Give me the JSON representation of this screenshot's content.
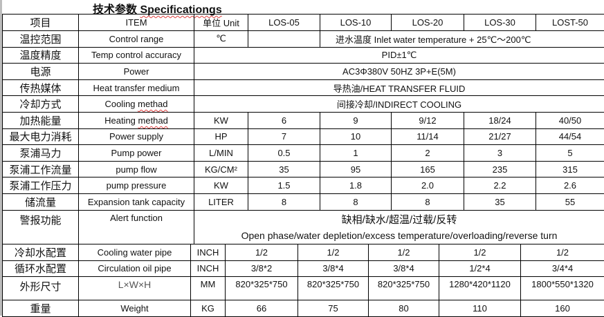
{
  "title": {
    "zh": "技术参数",
    "en": "Specificationgs"
  },
  "header": {
    "zh": "项目",
    "item": "ITEM",
    "unit": "单位 Unit",
    "models": [
      "LOS-05",
      "LOS-10",
      "LOS-20",
      "LOS-30",
      "LOST-50"
    ]
  },
  "rows_merged": [
    {
      "zh": "温控范围",
      "en": "Control range",
      "unit": "℃",
      "value": "进水温度 Inlet water temperature + 25℃～200℃"
    },
    {
      "zh": "温度精度",
      "en": "Temp control accuracy",
      "value": "PID±1℃"
    },
    {
      "zh": "电源",
      "en": "Power",
      "value": "AC3Φ380V 50HZ 3P+E(5M)"
    },
    {
      "zh": "传热媒体",
      "en": "Heat transfer medium",
      "value": "导热油/HEAT TRANSFER FLUID"
    },
    {
      "zh": "冷却方式",
      "en": "Cooling methad",
      "value": "间接冷却/INDIRECT COOLING"
    }
  ],
  "rows": [
    {
      "zh": "加热能量",
      "en": "Heating methad",
      "unit": "KW",
      "values": [
        "6",
        "9",
        "9/12",
        "18/24",
        "40/50"
      ]
    },
    {
      "zh": "最大电力消耗",
      "en": "Power supply",
      "unit": "HP",
      "values": [
        "7",
        "10",
        "11/14",
        "21/27",
        "44/54"
      ]
    },
    {
      "zh": "泵浦马力",
      "en": "Pump power",
      "unit": "L/MIN",
      "values": [
        "0.5",
        "1",
        "2",
        "3",
        "5"
      ]
    },
    {
      "zh": "泵浦工作流量",
      "en": "pump flow",
      "unit": "KG/CM²",
      "values": [
        "35",
        "95",
        "165",
        "235",
        "315"
      ]
    },
    {
      "zh": "泵浦工作压力",
      "en": "pump pressure",
      "unit": "KW",
      "values": [
        "1.5",
        "1.8",
        "2.0",
        "2.2",
        "2.6"
      ]
    },
    {
      "zh": "储流量",
      "en": "Expansion tank capacity",
      "unit": "LITER",
      "values": [
        "8",
        "8",
        "8",
        "35",
        "55"
      ]
    }
  ],
  "alert": {
    "zh": "警报功能",
    "en": "Alert function",
    "value_zh": "缺相/缺水/超温/过载/反转",
    "value_en": "Open phase/water depletion/excess temperature/overloading/reverse turn"
  },
  "rows_lower": [
    {
      "zh": "冷却水配置",
      "en": "Cooling water pipe",
      "unit": "INCH",
      "values": [
        "1/2",
        "1/2",
        "1/2",
        "1/2",
        "1/2"
      ]
    },
    {
      "zh": "循环水配置",
      "en": "Circulation oil pipe",
      "unit": "INCH",
      "values": [
        "3/8*2",
        "3/8*4",
        "3/8*4",
        "1/2*4",
        "3/4*4"
      ]
    },
    {
      "zh": "外形尺寸",
      "en": "L×W×H",
      "unit": "MM",
      "values": [
        "820*325*750",
        "820*325*750",
        "820*325*750",
        "1280*420*1120",
        "1800*550*1320"
      ]
    },
    {
      "zh": "重量",
      "en": "Weight",
      "unit": "KG",
      "values": [
        "66",
        "75",
        "80",
        "110",
        "160"
      ]
    }
  ]
}
